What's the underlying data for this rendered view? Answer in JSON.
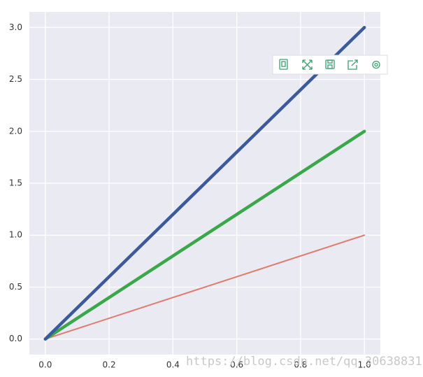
{
  "chart_data": {
    "type": "line",
    "x": [
      0,
      1
    ],
    "series": [
      {
        "color": "#e07b70",
        "width": 2,
        "values": [
          0,
          1
        ]
      },
      {
        "color": "#3aa84a",
        "width": 4.5,
        "values": [
          0,
          2
        ]
      },
      {
        "color": "#3c5a99",
        "width": 4.5,
        "values": [
          0,
          3
        ]
      }
    ],
    "xlim": [
      -0.05,
      1.05
    ],
    "ylim": [
      -0.15,
      3.15
    ],
    "xticks": [
      {
        "value": 0,
        "label": "0.0"
      },
      {
        "value": 0.2,
        "label": "0.2"
      },
      {
        "value": 0.4,
        "label": "0.4"
      },
      {
        "value": 0.6,
        "label": "0.6"
      },
      {
        "value": 0.8,
        "label": "0.8"
      },
      {
        "value": 1,
        "label": "1.0"
      }
    ],
    "yticks": [
      {
        "value": 0,
        "label": "0.0"
      },
      {
        "value": 0.5,
        "label": "0.5"
      },
      {
        "value": 1,
        "label": "1.0"
      },
      {
        "value": 1.5,
        "label": "1.5"
      },
      {
        "value": 2,
        "label": "2.0"
      },
      {
        "value": 2.5,
        "label": "2.5"
      },
      {
        "value": 3,
        "label": "3.0"
      }
    ],
    "grid": true,
    "watermark": "https://blog.csdn.net/qq_30638831"
  }
}
